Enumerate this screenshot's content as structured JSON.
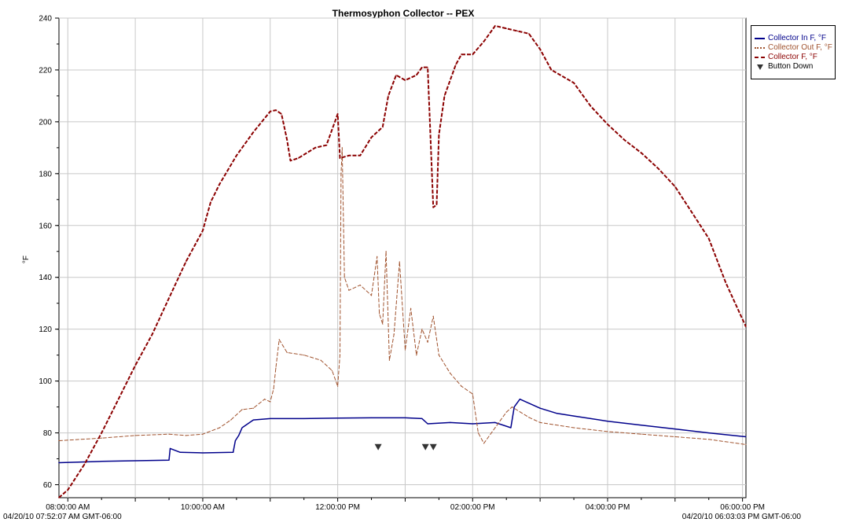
{
  "chart_data": {
    "type": "line",
    "title": "Thermosyphon Collector -- PEX",
    "ylabel": "°F",
    "xlabel": "",
    "ylim": [
      55,
      240
    ],
    "xlim": [
      "07:52:07",
      "18:03:03"
    ],
    "y_ticks": [
      60,
      80,
      100,
      120,
      140,
      160,
      180,
      200,
      220,
      240
    ],
    "x_ticks": [
      "08:00:00 AM",
      "10:00:00 AM",
      "12:00:00 PM",
      "02:00:00 PM",
      "04:00:00 PM",
      "06:00:00 PM"
    ],
    "start_label": "04/20/10 07:52:07 AM GMT-06:00",
    "end_label": "04/20/10 06:03:03 PM GMT-06:00",
    "grid": true,
    "legend_position": "top-right",
    "series": [
      {
        "name": "Collector In F, °F",
        "color": "#00008B",
        "style": "solid",
        "points": [
          [
            "07:52",
            68.5
          ],
          [
            "08:30",
            69
          ],
          [
            "09:30",
            69.5
          ],
          [
            "09:31",
            74
          ],
          [
            "09:40",
            72.5
          ],
          [
            "10:00",
            72.3
          ],
          [
            "10:27",
            72.5
          ],
          [
            "10:29",
            77
          ],
          [
            "10:32",
            79
          ],
          [
            "10:35",
            82
          ],
          [
            "10:45",
            85
          ],
          [
            "11:00",
            85.5
          ],
          [
            "11:30",
            85.5
          ],
          [
            "12:00",
            85.7
          ],
          [
            "12:30",
            85.8
          ],
          [
            "13:00",
            85.8
          ],
          [
            "13:15",
            85.5
          ],
          [
            "13:20",
            83.5
          ],
          [
            "13:40",
            84
          ],
          [
            "14:00",
            83.5
          ],
          [
            "14:20",
            84
          ],
          [
            "14:34",
            82
          ],
          [
            "14:37",
            90
          ],
          [
            "14:42",
            93
          ],
          [
            "15:00",
            89.5
          ],
          [
            "15:15",
            87.5
          ],
          [
            "15:30",
            86.5
          ],
          [
            "16:00",
            84.5
          ],
          [
            "16:30",
            83
          ],
          [
            "17:00",
            81.5
          ],
          [
            "17:30",
            80
          ],
          [
            "18:03",
            78.5
          ]
        ]
      },
      {
        "name": "Collector Out F, °F",
        "color": "#A0522D",
        "style": "dashed",
        "points": [
          [
            "07:52",
            77
          ],
          [
            "08:30",
            78
          ],
          [
            "09:00",
            79
          ],
          [
            "09:30",
            79.5
          ],
          [
            "09:45",
            79
          ],
          [
            "10:00",
            79.5
          ],
          [
            "10:15",
            82
          ],
          [
            "10:25",
            85
          ],
          [
            "10:35",
            89
          ],
          [
            "10:45",
            89.5
          ],
          [
            "10:55",
            93
          ],
          [
            "11:00",
            92
          ],
          [
            "11:03",
            97
          ],
          [
            "11:05",
            105
          ],
          [
            "11:08",
            116
          ],
          [
            "11:15",
            111
          ],
          [
            "11:30",
            110
          ],
          [
            "11:45",
            108
          ],
          [
            "11:55",
            104
          ],
          [
            "12:00",
            98
          ],
          [
            "12:02",
            110
          ],
          [
            "12:03",
            180
          ],
          [
            "12:04",
            190
          ],
          [
            "12:06",
            140
          ],
          [
            "12:10",
            135
          ],
          [
            "12:20",
            137
          ],
          [
            "12:30",
            133
          ],
          [
            "12:35",
            148
          ],
          [
            "12:37",
            126
          ],
          [
            "12:40",
            122
          ],
          [
            "12:43",
            150
          ],
          [
            "12:46",
            108
          ],
          [
            "12:50",
            118
          ],
          [
            "12:55",
            146
          ],
          [
            "13:00",
            112
          ],
          [
            "13:05",
            128
          ],
          [
            "13:10",
            110
          ],
          [
            "13:15",
            120
          ],
          [
            "13:20",
            115
          ],
          [
            "13:25",
            125
          ],
          [
            "13:30",
            110
          ],
          [
            "13:40",
            103
          ],
          [
            "13:50",
            98
          ],
          [
            "14:00",
            95
          ],
          [
            "14:05",
            80
          ],
          [
            "14:10",
            76
          ],
          [
            "14:20",
            82
          ],
          [
            "14:30",
            88
          ],
          [
            "14:35",
            90
          ],
          [
            "14:50",
            86
          ],
          [
            "15:00",
            84
          ],
          [
            "15:30",
            82
          ],
          [
            "16:00",
            80.5
          ],
          [
            "16:30",
            79.5
          ],
          [
            "17:00",
            78.5
          ],
          [
            "17:30",
            77.5
          ],
          [
            "18:03",
            75.5
          ]
        ]
      },
      {
        "name": "Collector F, °F",
        "color": "#8B0000",
        "style": "dashed",
        "points": [
          [
            "07:52",
            55
          ],
          [
            "08:00",
            58
          ],
          [
            "08:15",
            68
          ],
          [
            "08:30",
            80
          ],
          [
            "08:45",
            93
          ],
          [
            "09:00",
            106
          ],
          [
            "09:15",
            118
          ],
          [
            "09:30",
            132
          ],
          [
            "09:45",
            146
          ],
          [
            "10:00",
            158
          ],
          [
            "10:07",
            169
          ],
          [
            "10:15",
            176
          ],
          [
            "10:30",
            187
          ],
          [
            "10:45",
            196
          ],
          [
            "11:00",
            204
          ],
          [
            "11:05",
            204.5
          ],
          [
            "11:10",
            203
          ],
          [
            "11:15",
            193
          ],
          [
            "11:18",
            185
          ],
          [
            "11:25",
            186
          ],
          [
            "11:40",
            190
          ],
          [
            "11:50",
            191
          ],
          [
            "12:00",
            203
          ],
          [
            "12:02",
            186
          ],
          [
            "12:10",
            187
          ],
          [
            "12:20",
            187
          ],
          [
            "12:30",
            194
          ],
          [
            "12:40",
            198
          ],
          [
            "12:45",
            210
          ],
          [
            "12:52",
            218
          ],
          [
            "13:00",
            216
          ],
          [
            "13:10",
            218
          ],
          [
            "13:15",
            221
          ],
          [
            "13:20",
            221
          ],
          [
            "13:22",
            200
          ],
          [
            "13:25",
            167
          ],
          [
            "13:28",
            168
          ],
          [
            "13:30",
            195
          ],
          [
            "13:35",
            210
          ],
          [
            "13:45",
            222
          ],
          [
            "13:50",
            226
          ],
          [
            "14:00",
            226
          ],
          [
            "14:10",
            231
          ],
          [
            "14:20",
            237
          ],
          [
            "14:30",
            236
          ],
          [
            "14:40",
            235
          ],
          [
            "14:50",
            234
          ],
          [
            "15:00",
            228
          ],
          [
            "15:10",
            220
          ],
          [
            "15:30",
            215
          ],
          [
            "15:45",
            206
          ],
          [
            "16:00",
            199
          ],
          [
            "16:15",
            193
          ],
          [
            "16:30",
            188
          ],
          [
            "16:45",
            182
          ],
          [
            "17:00",
            175
          ],
          [
            "17:15",
            165
          ],
          [
            "17:30",
            155
          ],
          [
            "17:45",
            138
          ],
          [
            "18:03",
            121
          ]
        ]
      },
      {
        "name": "Button Down",
        "color": "#333333",
        "style": "marker-triangle-down",
        "points": [
          [
            "12:36",
            74.5
          ],
          [
            "13:18",
            74.5
          ],
          [
            "13:25",
            74.5
          ]
        ]
      }
    ]
  }
}
